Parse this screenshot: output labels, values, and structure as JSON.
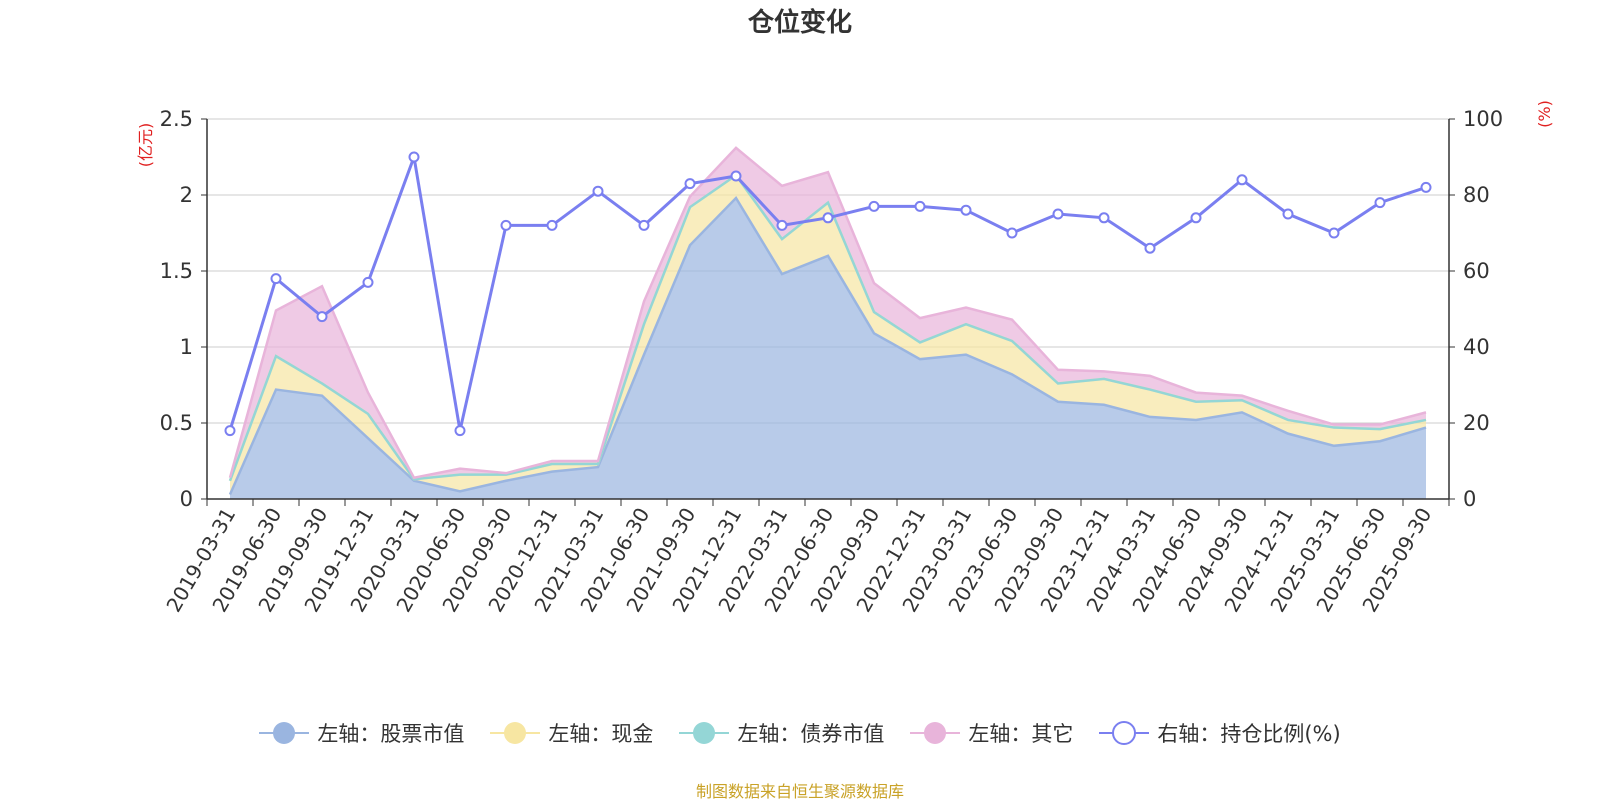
{
  "chart_data": {
    "type": "area",
    "title": "仓位变化",
    "left_axis_label": "(亿元)",
    "right_axis_label": "(%)",
    "left_ylim": [
      0,
      2.5
    ],
    "left_ticks": [
      "0",
      "0.5",
      "1",
      "1.5",
      "2",
      "2.5"
    ],
    "left_tick_values": [
      0,
      0.5,
      1,
      1.5,
      2,
      2.5
    ],
    "right_ylim": [
      0,
      100
    ],
    "right_ticks": [
      "0",
      "20",
      "40",
      "60",
      "80",
      "100"
    ],
    "right_tick_values": [
      0,
      20,
      40,
      60,
      80,
      100
    ],
    "grid": true,
    "categories": [
      "2019-03-31",
      "2019-06-30",
      "2019-09-30",
      "2019-12-31",
      "2020-03-31",
      "2020-06-30",
      "2020-09-30",
      "2020-12-31",
      "2021-03-31",
      "2021-06-30",
      "2021-09-30",
      "2021-12-31",
      "2022-03-31",
      "2022-06-30",
      "2022-09-30",
      "2022-12-31",
      "2023-03-31",
      "2023-06-30",
      "2023-09-30",
      "2023-12-31",
      "2024-03-31",
      "2024-06-30",
      "2024-09-30",
      "2024-12-31",
      "2025-03-31",
      "2025-06-30",
      "2025-09-30"
    ],
    "series": [
      {
        "name": "左轴：股票市值",
        "axis": "left",
        "type": "area-stack",
        "color": "#9ab5e0",
        "values": [
          0.03,
          0.72,
          0.68,
          0.4,
          0.12,
          0.05,
          0.12,
          0.18,
          0.21,
          0.95,
          1.67,
          1.98,
          1.48,
          1.6,
          1.09,
          0.92,
          0.95,
          0.82,
          0.64,
          0.62,
          0.54,
          0.52,
          0.57,
          0.43,
          0.35,
          0.38,
          0.47
        ]
      },
      {
        "name": "左轴：现金",
        "axis": "left",
        "type": "area-stack",
        "color": "#f7e6a2",
        "values": [
          0.09,
          0.22,
          0.08,
          0.16,
          0.01,
          0.11,
          0.04,
          0.05,
          0.02,
          0.2,
          0.25,
          0.15,
          0.23,
          0.35,
          0.14,
          0.11,
          0.2,
          0.22,
          0.12,
          0.17,
          0.18,
          0.12,
          0.08,
          0.09,
          0.12,
          0.08,
          0.05
        ]
      },
      {
        "name": "左轴：债券市值",
        "axis": "left",
        "type": "area-stack",
        "color": "#94d6d6",
        "values": [
          0,
          0,
          0,
          0,
          0,
          0,
          0,
          0,
          0,
          0,
          0,
          0,
          0,
          0,
          0,
          0,
          0,
          0,
          0,
          0,
          0,
          0,
          0,
          0,
          0,
          0,
          0
        ]
      },
      {
        "name": "左轴：其它",
        "axis": "left",
        "type": "area-stack",
        "color": "#e8b4da",
        "values": [
          0.02,
          0.3,
          0.64,
          0.14,
          0.01,
          0.04,
          0.01,
          0.02,
          0.02,
          0.15,
          0.07,
          0.18,
          0.35,
          0.2,
          0.19,
          0.16,
          0.11,
          0.14,
          0.09,
          0.05,
          0.09,
          0.06,
          0.03,
          0.06,
          0.02,
          0.03,
          0.05
        ]
      },
      {
        "name": "右轴：持仓比例(%)",
        "axis": "right",
        "type": "line",
        "color": "#7a7ff0",
        "values": [
          18,
          58,
          48,
          57,
          90,
          18,
          72,
          72,
          81,
          72,
          83,
          85,
          72,
          74,
          77,
          77,
          76,
          70,
          75,
          74,
          66,
          74,
          84,
          75,
          70,
          78,
          82
        ]
      }
    ]
  },
  "footer": "制图数据来自恒生聚源数据库"
}
